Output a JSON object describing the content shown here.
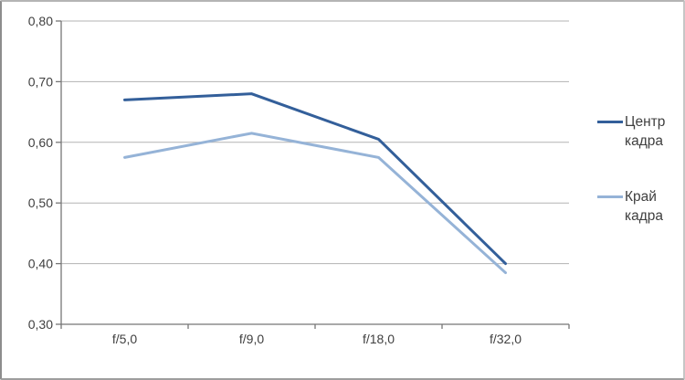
{
  "chart_data": {
    "type": "line",
    "title": "",
    "xlabel": "",
    "ylabel": "",
    "categories": [
      "f/5,0",
      "f/9,0",
      "f/18,0",
      "f/32,0"
    ],
    "series": [
      {
        "name": "Центр кадра",
        "values": [
          0.67,
          0.68,
          0.605,
          0.4
        ],
        "color": "#335F9A",
        "stroke_width": 3
      },
      {
        "name": "Край кадра",
        "values": [
          0.575,
          0.615,
          0.575,
          0.385
        ],
        "color": "#95B3D7",
        "stroke_width": 3
      }
    ],
    "ylim": [
      0.3,
      0.8
    ],
    "ytick_step": 0.1,
    "ytick_labels": [
      "0,30",
      "0,40",
      "0,50",
      "0,60",
      "0,70",
      "0,80"
    ],
    "grid": true,
    "legend_position": "right",
    "decimal_separator": ","
  },
  "style": {
    "gridline_color": "#b3b3b3",
    "axis_color": "#767676",
    "tick_label_color": "#3f3f3f",
    "background_color": "#ffffff",
    "tick_font_size": 14
  }
}
